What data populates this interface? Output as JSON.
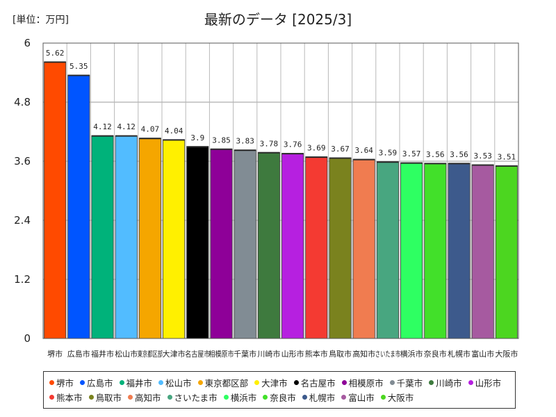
{
  "unit_label": "[単位：万円]",
  "chart_data": {
    "type": "bar",
    "title": "最新のデータ [2025/3]",
    "ylim": [
      0,
      6
    ],
    "yticks": [
      0,
      1.2,
      2.4,
      3.6,
      4.8,
      6
    ],
    "ytick_labels": [
      "0",
      "1.2",
      "2.4",
      "3.6",
      "4.8",
      "6"
    ],
    "grid": true,
    "legend": "bottom",
    "categories": [
      "堺市",
      "広島市",
      "福井市",
      "松山市",
      "東京都区部",
      "大津市",
      "名古屋市",
      "相模原市",
      "千葉市",
      "川崎市",
      "山形市",
      "熊本市",
      "鳥取市",
      "高知市",
      "さいたま市",
      "横浜市",
      "奈良市",
      "札幌市",
      "富山市",
      "大阪市"
    ],
    "values": [
      5.62,
      5.35,
      4.12,
      4.12,
      4.07,
      4.04,
      3.9,
      3.85,
      3.83,
      3.78,
      3.76,
      3.69,
      3.67,
      3.64,
      3.59,
      3.57,
      3.56,
      3.56,
      3.53,
      3.51
    ],
    "value_labels": [
      "5.62",
      "5.35",
      "4.12",
      "4.12",
      "4.07",
      "4.04",
      "3.9",
      "3.85",
      "3.83",
      "3.78",
      "3.76",
      "3.69",
      "3.67",
      "3.64",
      "3.59",
      "3.57",
      "3.56",
      "3.56",
      "3.53",
      "3.51"
    ],
    "colors": [
      "#ff4a00",
      "#0055ff",
      "#00b27a",
      "#52bcff",
      "#f5a600",
      "#fff000",
      "#000000",
      "#8e0098",
      "#818c94",
      "#3e7a3e",
      "#b620e0",
      "#f43a32",
      "#7a821e",
      "#f07c50",
      "#48a680",
      "#2eff62",
      "#42e02a",
      "#3d5a8c",
      "#a65aa0",
      "#4cd620"
    ]
  }
}
